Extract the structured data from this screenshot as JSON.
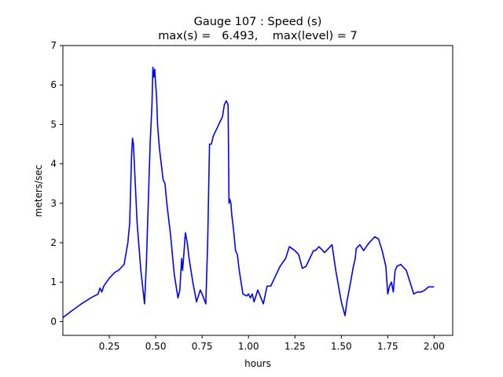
{
  "chart_data": {
    "type": "line",
    "title": "Gauge 107 : Speed (s)",
    "subtitle": "max(s) =   6.493,    max(level) = 7",
    "xlabel": "hours",
    "ylabel": "meters/sec",
    "xlim": [
      0.0,
      2.1
    ],
    "ylim": [
      -0.35,
      7.0
    ],
    "xticks": [
      0.25,
      0.5,
      0.75,
      1.0,
      1.25,
      1.5,
      1.75,
      2.0
    ],
    "xtick_labels": [
      "0.25",
      "0.50",
      "0.75",
      "1.00",
      "1.25",
      "1.50",
      "1.75",
      "2.00"
    ],
    "yticks": [
      0,
      1,
      2,
      3,
      4,
      5,
      6,
      7
    ],
    "ytick_labels": [
      "0",
      "1",
      "2",
      "3",
      "4",
      "5",
      "6",
      "7"
    ],
    "grid": false,
    "series": [
      {
        "color": "#0000ff",
        "x": [
          0.0,
          0.05,
          0.1,
          0.15,
          0.19,
          0.2,
          0.21,
          0.22,
          0.25,
          0.28,
          0.3,
          0.33,
          0.35,
          0.36,
          0.37,
          0.375,
          0.38,
          0.385,
          0.39,
          0.4,
          0.42,
          0.44,
          0.45,
          0.46,
          0.47,
          0.48,
          0.485,
          0.49,
          0.495,
          0.5,
          0.505,
          0.51,
          0.52,
          0.53,
          0.54,
          0.55,
          0.56,
          0.58,
          0.6,
          0.62,
          0.63,
          0.64,
          0.645,
          0.65,
          0.66,
          0.67,
          0.68,
          0.7,
          0.72,
          0.74,
          0.75,
          0.77,
          0.78,
          0.79,
          0.8,
          0.81,
          0.82,
          0.83,
          0.84,
          0.85,
          0.86,
          0.87,
          0.88,
          0.89,
          0.895,
          0.9,
          0.905,
          0.91,
          0.92,
          0.93,
          0.94,
          0.95,
          0.97,
          0.99,
          1.0,
          1.01,
          1.02,
          1.03,
          1.05,
          1.08,
          1.1,
          1.12,
          1.14,
          1.15,
          1.17,
          1.2,
          1.22,
          1.25,
          1.27,
          1.29,
          1.31,
          1.33,
          1.35,
          1.36,
          1.38,
          1.41,
          1.43,
          1.45,
          1.47,
          1.5,
          1.52,
          1.53,
          1.55,
          1.565,
          1.575,
          1.58,
          1.6,
          1.62,
          1.65,
          1.68,
          1.7,
          1.72,
          1.74,
          1.75,
          1.76,
          1.77,
          1.78,
          1.79,
          1.8,
          1.82,
          1.85,
          1.87,
          1.89,
          1.91,
          1.93,
          1.95,
          1.97,
          2.0
        ],
        "y": [
          0.1,
          0.28,
          0.45,
          0.6,
          0.7,
          0.85,
          0.75,
          0.9,
          1.1,
          1.25,
          1.3,
          1.45,
          2.0,
          2.5,
          4.2,
          4.65,
          4.5,
          4.0,
          3.5,
          2.5,
          1.3,
          0.45,
          1.5,
          3.0,
          4.5,
          5.5,
          6.45,
          6.2,
          6.4,
          6.0,
          5.7,
          5.0,
          4.4,
          4.0,
          3.6,
          3.5,
          3.0,
          2.2,
          1.2,
          0.6,
          0.8,
          1.6,
          1.3,
          1.6,
          2.25,
          2.0,
          1.6,
          1.0,
          0.5,
          0.8,
          0.7,
          0.45,
          2.0,
          4.5,
          4.5,
          4.7,
          4.8,
          4.9,
          5.0,
          5.1,
          5.2,
          5.5,
          5.6,
          5.5,
          3.0,
          3.1,
          3.0,
          2.7,
          2.3,
          1.8,
          1.7,
          1.3,
          0.7,
          0.65,
          0.7,
          0.6,
          0.7,
          0.5,
          0.8,
          0.45,
          0.9,
          0.9,
          1.1,
          1.2,
          1.4,
          1.6,
          1.9,
          1.8,
          1.7,
          1.35,
          1.4,
          1.6,
          1.8,
          1.8,
          1.9,
          1.75,
          1.85,
          1.95,
          1.3,
          0.5,
          0.15,
          0.5,
          1.0,
          1.4,
          1.6,
          1.85,
          1.95,
          1.8,
          2.0,
          2.15,
          2.1,
          1.8,
          1.4,
          0.7,
          0.9,
          1.0,
          0.75,
          1.3,
          1.4,
          1.45,
          1.3,
          1.0,
          0.7,
          0.75,
          0.75,
          0.8,
          0.88,
          0.88
        ]
      }
    ]
  }
}
